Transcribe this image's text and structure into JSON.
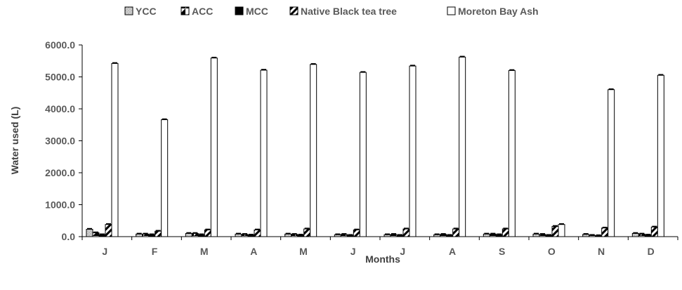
{
  "chart_data": {
    "type": "bar",
    "title": "",
    "xlabel": "Months",
    "ylabel": "Water used (L)",
    "ylim": [
      0,
      6000
    ],
    "yticks": [
      0,
      1000,
      2000,
      3000,
      4000,
      5000,
      6000
    ],
    "ytick_labels": [
      "0.0",
      "1000.0",
      "2000.0",
      "3000.0",
      "4000.0",
      "5000.0",
      "6000.0"
    ],
    "categories": [
      "J",
      "F",
      "M",
      "A",
      "M",
      "J",
      "J",
      "A",
      "S",
      "O",
      "N",
      "D"
    ],
    "legend_position": "top",
    "grid": false,
    "series": [
      {
        "name": "YCC",
        "pattern": "light-gray",
        "values": [
          230,
          80,
          100,
          80,
          80,
          60,
          60,
          60,
          80,
          80,
          70,
          100
        ]
      },
      {
        "name": "ACC",
        "pattern": "diagonal-fill",
        "values": [
          120,
          80,
          100,
          70,
          70,
          70,
          70,
          70,
          80,
          70,
          40,
          80
        ]
      },
      {
        "name": "MCC",
        "pattern": "solid-black",
        "values": [
          60,
          60,
          60,
          50,
          50,
          40,
          40,
          40,
          60,
          40,
          30,
          50
        ]
      },
      {
        "name": "Native Black tea tree",
        "pattern": "diagonal-hatch",
        "values": [
          380,
          170,
          210,
          210,
          240,
          210,
          240,
          240,
          240,
          320,
          270,
          300
        ]
      },
      {
        "name": "Moreton Bay Ash",
        "pattern": "white",
        "values": [
          5420,
          3660,
          5590,
          5210,
          5390,
          5140,
          5340,
          5620,
          5200,
          380,
          4600,
          5050
        ]
      }
    ]
  }
}
